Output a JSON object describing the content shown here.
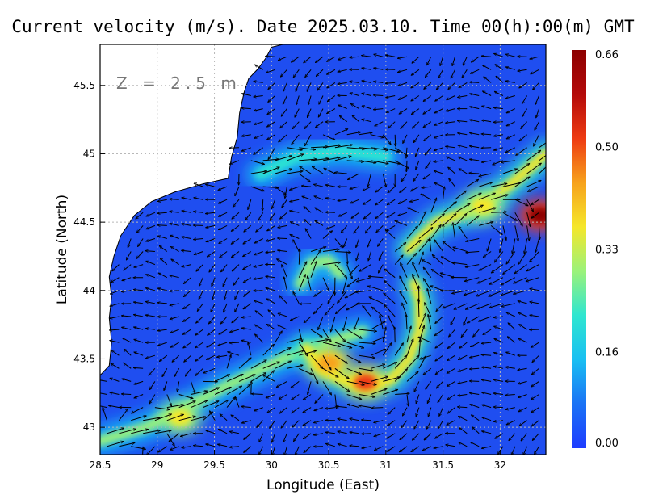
{
  "chart_data": {
    "type": "heatmap",
    "title": "Current velocity (m/s). Date 2025.03.10. Time 00(h):00(m) GMT",
    "depth_label": "Z = 2.5 m",
    "xlabel": "Longitude (East)",
    "ylabel": "Latitude (North)",
    "xlim": [
      28.5,
      32.4
    ],
    "ylim": [
      42.8,
      45.8
    ],
    "x_ticks": [
      {
        "value": 28.5,
        "label": "28.5"
      },
      {
        "value": 29,
        "label": "29"
      },
      {
        "value": 29.5,
        "label": "29.5"
      },
      {
        "value": 30,
        "label": "30"
      },
      {
        "value": 30.5,
        "label": "30.5"
      },
      {
        "value": 31,
        "label": "31"
      },
      {
        "value": 31.5,
        "label": "31.5"
      },
      {
        "value": 32,
        "label": "32"
      }
    ],
    "y_ticks": [
      {
        "value": 43,
        "label": "43"
      },
      {
        "value": 43.5,
        "label": "43.5"
      },
      {
        "value": 44,
        "label": "44"
      },
      {
        "value": 44.5,
        "label": "44.5"
      },
      {
        "value": 45,
        "label": "45"
      },
      {
        "value": 45.5,
        "label": "45.5"
      }
    ],
    "grid": true,
    "colorbar": {
      "min": 0.0,
      "max": 0.66,
      "ticks": [
        {
          "value": 0.66,
          "label": "0.66"
        },
        {
          "value": 0.5,
          "label": "0.50"
        },
        {
          "value": 0.33,
          "label": "0.33"
        },
        {
          "value": 0.16,
          "label": "0.16"
        },
        {
          "value": 0.0,
          "label": "0.00"
        }
      ],
      "colors": [
        "#1e3cff",
        "#1a72f5",
        "#19bff2",
        "#2fe6d0",
        "#9bf27a",
        "#f5e72a",
        "#f7a21c",
        "#ee3b12",
        "#b40a0a",
        "#8c0000"
      ]
    },
    "land_color": "#ffffff",
    "ocean_background": "#1f4ef0",
    "coastline": [
      [
        28.5,
        43.38
      ],
      [
        28.58,
        43.45
      ],
      [
        28.6,
        43.62
      ],
      [
        28.58,
        43.8
      ],
      [
        28.6,
        43.95
      ],
      [
        28.58,
        44.1
      ],
      [
        28.62,
        44.25
      ],
      [
        28.68,
        44.4
      ],
      [
        28.8,
        44.55
      ],
      [
        28.95,
        44.65
      ],
      [
        29.15,
        44.72
      ],
      [
        29.4,
        44.78
      ],
      [
        29.62,
        44.82
      ],
      [
        29.65,
        44.98
      ],
      [
        29.7,
        45.12
      ],
      [
        29.72,
        45.3
      ],
      [
        29.76,
        45.45
      ],
      [
        29.8,
        45.55
      ],
      [
        29.88,
        45.62
      ],
      [
        29.95,
        45.7
      ],
      [
        30.0,
        45.78
      ],
      [
        30.1,
        45.8
      ]
    ],
    "jets": [
      {
        "name": "",
        "speed": 0.3,
        "points": [
          [
            28.5,
            42.9
          ],
          [
            28.9,
            43.0
          ],
          [
            29.2,
            43.12
          ],
          [
            29.6,
            43.3
          ],
          [
            30.1,
            43.5
          ],
          [
            30.5,
            43.62
          ],
          [
            30.8,
            43.7
          ]
        ]
      },
      {
        "name": "",
        "speed": 0.4,
        "points": [
          [
            30.3,
            43.58
          ],
          [
            30.42,
            43.45
          ],
          [
            30.6,
            43.35
          ],
          [
            30.85,
            43.3
          ],
          [
            31.05,
            43.35
          ],
          [
            31.2,
            43.5
          ],
          [
            31.3,
            43.72
          ],
          [
            31.3,
            43.92
          ],
          [
            31.25,
            44.05
          ]
        ]
      },
      {
        "name": "",
        "speed": 0.35,
        "points": [
          [
            31.2,
            44.3
          ],
          [
            31.45,
            44.5
          ],
          [
            31.8,
            44.6
          ],
          [
            32.1,
            44.78
          ],
          [
            32.4,
            45.0
          ]
        ]
      },
      {
        "name": "",
        "speed": 0.3,
        "points": [
          [
            30.25,
            44.05
          ],
          [
            30.35,
            44.2
          ],
          [
            30.5,
            44.22
          ],
          [
            30.6,
            44.12
          ]
        ]
      },
      {
        "name": "",
        "speed": 0.2,
        "points": [
          [
            29.9,
            44.85
          ],
          [
            30.2,
            44.97
          ],
          [
            30.6,
            45.02
          ],
          [
            31.0,
            44.98
          ]
        ]
      }
    ],
    "hotspots": [
      {
        "lon": 32.35,
        "lat": 44.55,
        "speed": 0.66
      },
      {
        "lon": 30.82,
        "lat": 43.33,
        "speed": 0.5
      },
      {
        "lon": 30.5,
        "lat": 43.47,
        "speed": 0.45
      },
      {
        "lon": 29.2,
        "lat": 43.07,
        "speed": 0.4
      },
      {
        "lon": 31.85,
        "lat": 44.62,
        "speed": 0.38
      }
    ],
    "eddies": [
      {
        "lon": 30.82,
        "lat": 43.78,
        "radius": 0.42,
        "direction": "anticlockwise"
      },
      {
        "lon": 31.9,
        "lat": 44.3,
        "radius": 0.5,
        "direction": "clockwise"
      }
    ],
    "vector_field": "Arrow vectors show current direction at each model grid point; arrow length scales with speed"
  }
}
